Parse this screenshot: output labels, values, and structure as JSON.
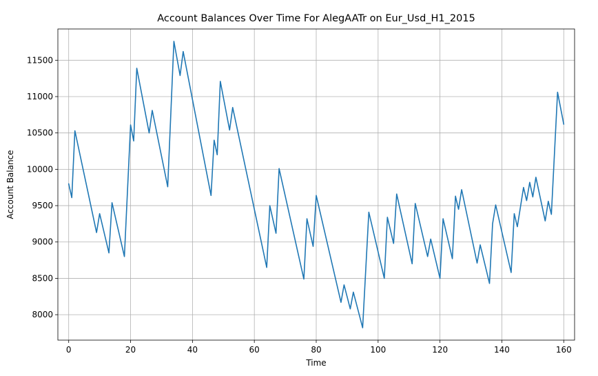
{
  "chart_data": {
    "type": "line",
    "title": "Account Balances Over Time For AlegAATr on Eur_Usd_H1_2015",
    "xlabel": "Time",
    "ylabel": "Account Balance",
    "xlim": [
      -3.5,
      163.5
    ],
    "ylim": [
      7650,
      11930
    ],
    "xticks": [
      0,
      20,
      40,
      60,
      80,
      100,
      120,
      140,
      160
    ],
    "yticks": [
      8000,
      8500,
      9000,
      9500,
      10000,
      10500,
      11000,
      11500
    ],
    "grid": true,
    "color": "#1f77b4",
    "x": [
      0,
      1,
      2,
      9,
      10,
      13,
      14,
      18,
      20,
      21,
      22,
      26,
      27,
      32,
      34,
      36,
      37,
      46,
      47,
      48,
      49,
      52,
      53,
      64,
      65,
      67,
      68,
      76,
      77,
      79,
      80,
      88,
      89,
      91,
      92,
      95,
      97,
      102,
      103,
      105,
      106,
      111,
      112,
      116,
      117,
      120,
      121,
      124,
      125,
      126,
      127,
      132,
      133,
      136,
      137,
      138,
      143,
      144,
      145,
      147,
      148,
      149,
      150,
      151,
      154,
      155,
      156,
      158,
      160
    ],
    "y": [
      9800,
      9610,
      10530,
      9130,
      9390,
      8850,
      9540,
      8800,
      10610,
      10390,
      11390,
      10500,
      10810,
      9760,
      11760,
      11290,
      11620,
      9640,
      10400,
      10200,
      11210,
      10540,
      10850,
      8650,
      9500,
      9120,
      10010,
      8490,
      9320,
      8940,
      9640,
      8170,
      8410,
      8080,
      8310,
      7820,
      9410,
      8500,
      9340,
      8980,
      9660,
      8700,
      9530,
      8800,
      9040,
      8500,
      9320,
      8770,
      9630,
      9450,
      9720,
      8710,
      8960,
      8430,
      9250,
      9510,
      8580,
      9390,
      9210,
      9750,
      9570,
      9820,
      9620,
      9890,
      9290,
      9560,
      9380,
      11060,
      10620
    ]
  }
}
